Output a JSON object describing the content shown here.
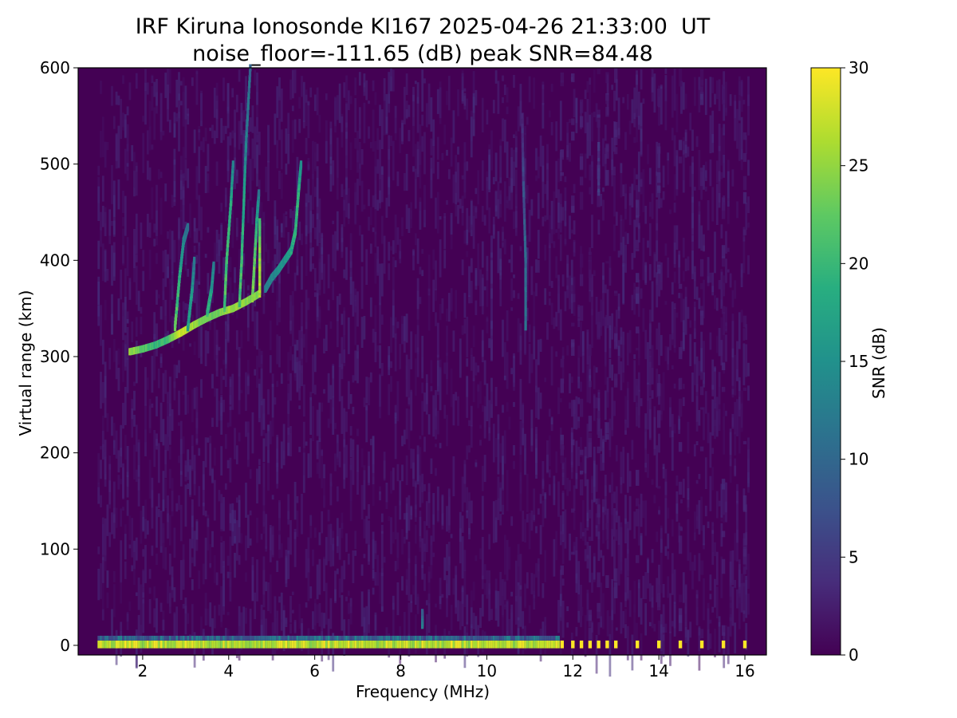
{
  "chart_data": {
    "type": "heatmap",
    "title": "IRF Kiruna Ionosonde KI167 2025-04-26 21:33:00  UT",
    "subtitle": "noise_floor=-111.65 (dB) peak SNR=84.48",
    "xlabel": "Frequency (MHz)",
    "ylabel": "Virtual range (km)",
    "xlim": [
      0.5,
      16.5
    ],
    "ylim": [
      -10,
      600
    ],
    "xticks": [
      2,
      4,
      6,
      8,
      10,
      12,
      14,
      16
    ],
    "yticks": [
      0,
      100,
      200,
      300,
      400,
      500,
      600
    ],
    "colorbar": {
      "label": "SNR (dB)",
      "range": [
        0,
        30
      ],
      "ticks": [
        0,
        5,
        10,
        15,
        20,
        25,
        30
      ],
      "colormap": "viridis"
    },
    "grid": false,
    "sweep_continuous_mhz": [
      0.95,
      11.65
    ],
    "sweep_discrete_mhz": [
      11.75,
      12.0,
      12.2,
      12.4,
      12.6,
      12.8,
      13.0,
      13.5,
      14.0,
      14.5,
      15.0,
      15.5,
      16.0
    ],
    "ground_echo": {
      "range_km": [
        -3,
        5
      ],
      "snr_db": 30
    },
    "echo_traces": [
      {
        "points": [
          [
            1.7,
            305,
            27
          ],
          [
            2.0,
            308,
            24
          ],
          [
            2.3,
            312,
            21
          ],
          [
            2.6,
            318,
            23
          ],
          [
            2.9,
            325,
            29
          ],
          [
            3.2,
            333,
            27
          ],
          [
            3.5,
            340,
            24
          ],
          [
            3.8,
            346,
            25
          ],
          [
            4.1,
            350,
            27
          ],
          [
            4.4,
            357,
            26
          ],
          [
            4.7,
            365,
            25
          ]
        ]
      },
      {
        "points": [
          [
            2.75,
            330,
            24
          ],
          [
            2.85,
            380,
            20
          ],
          [
            2.95,
            420,
            16
          ],
          [
            3.05,
            435,
            12
          ]
        ]
      },
      {
        "points": [
          [
            3.05,
            330,
            19
          ],
          [
            3.15,
            370,
            17
          ],
          [
            3.2,
            400,
            13
          ]
        ]
      },
      {
        "points": [
          [
            3.5,
            345,
            21
          ],
          [
            3.6,
            370,
            18
          ],
          [
            3.65,
            395,
            14
          ]
        ]
      },
      {
        "points": [
          [
            3.9,
            350,
            23
          ],
          [
            3.95,
            400,
            22
          ],
          [
            4.05,
            460,
            20
          ],
          [
            4.1,
            500,
            15
          ]
        ]
      },
      {
        "points": [
          [
            4.25,
            355,
            22
          ],
          [
            4.3,
            400,
            22
          ],
          [
            4.35,
            460,
            19
          ],
          [
            4.4,
            520,
            14
          ],
          [
            4.5,
            600,
            12
          ]
        ]
      },
      {
        "points": [
          [
            4.55,
            360,
            26
          ],
          [
            4.6,
            400,
            24
          ],
          [
            4.65,
            440,
            20
          ],
          [
            4.7,
            470,
            14
          ]
        ]
      },
      {
        "points": [
          [
            4.72,
            365,
            28
          ],
          [
            4.72,
            400,
            27
          ],
          [
            4.72,
            440,
            22
          ]
        ]
      },
      {
        "points": [
          [
            4.85,
            370,
            14
          ],
          [
            5.0,
            382,
            15
          ],
          [
            5.15,
            390,
            16
          ],
          [
            5.3,
            400,
            17
          ],
          [
            5.45,
            410,
            19
          ],
          [
            5.55,
            430,
            21
          ],
          [
            5.62,
            470,
            21
          ],
          [
            5.68,
            500,
            16
          ]
        ]
      }
    ],
    "weak_traces": [
      {
        "points": [
          [
            10.9,
            330,
            13
          ],
          [
            10.9,
            400,
            12
          ],
          [
            10.85,
            480,
            8
          ],
          [
            10.82,
            550,
            5
          ]
        ]
      },
      {
        "points": [
          [
            12.6,
            470,
            6
          ],
          [
            12.6,
            520,
            5
          ]
        ]
      },
      {
        "points": [
          [
            8.5,
            20,
            14
          ],
          [
            8.5,
            35,
            11
          ]
        ]
      }
    ]
  }
}
